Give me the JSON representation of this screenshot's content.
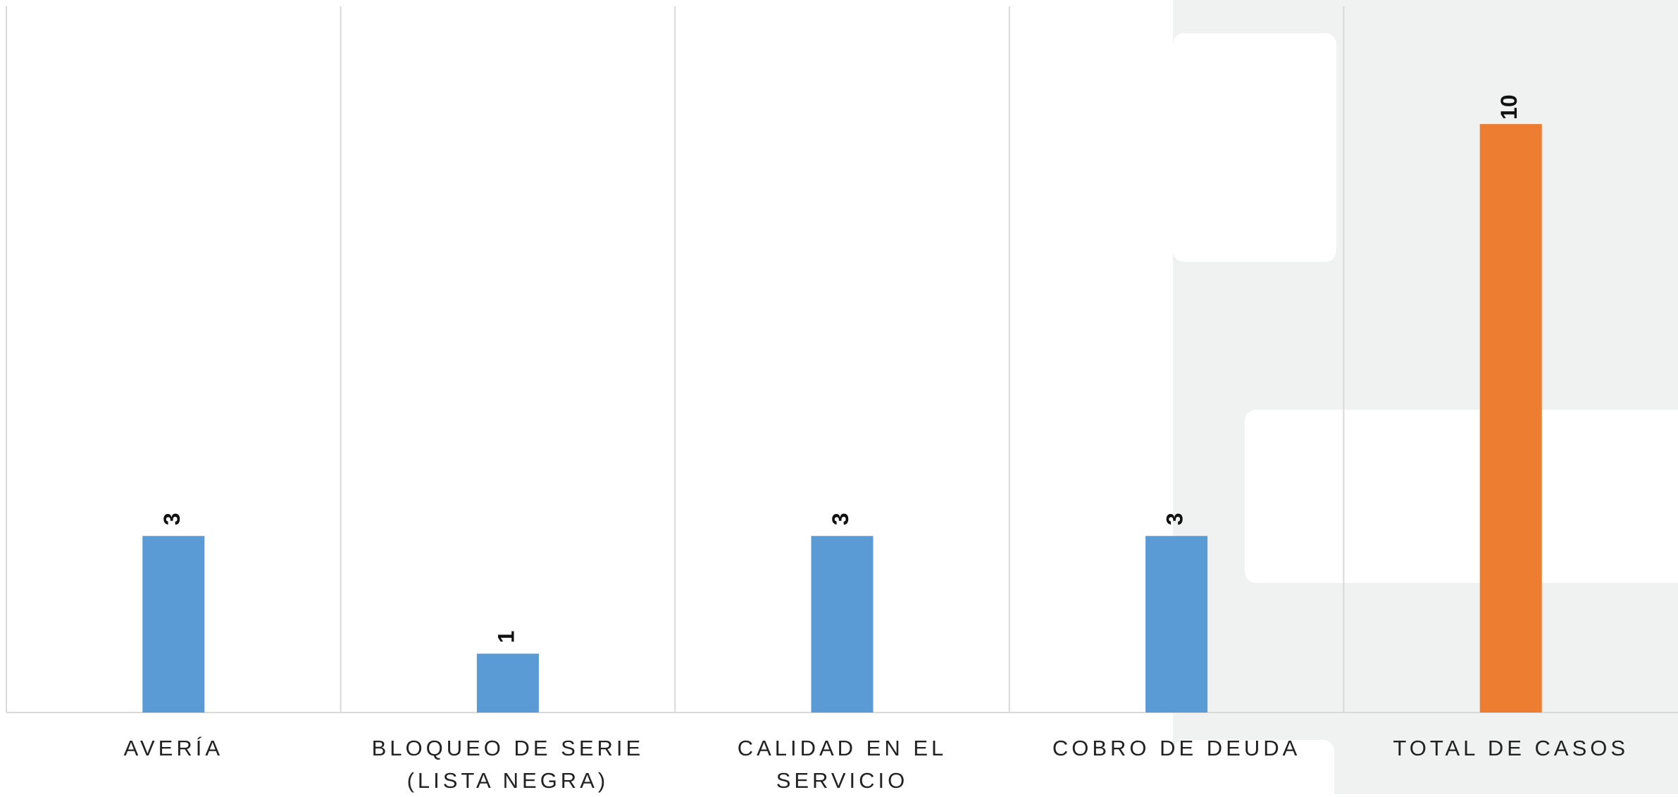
{
  "chart_data": {
    "type": "bar",
    "categories": [
      "AVERÍA",
      "BLOQUEO DE SERIE (LISTA NEGRA)",
      "CALIDAD EN EL SERVICIO",
      "COBRO DE DEUDA",
      "TOTAL DE CASOS"
    ],
    "values": [
      3,
      1,
      3,
      3,
      10
    ],
    "colors": [
      "#5b9bd5",
      "#5b9bd5",
      "#5b9bd5",
      "#5b9bd5",
      "#ed7d31"
    ],
    "ylim": [
      0,
      12
    ],
    "grid": true
  }
}
